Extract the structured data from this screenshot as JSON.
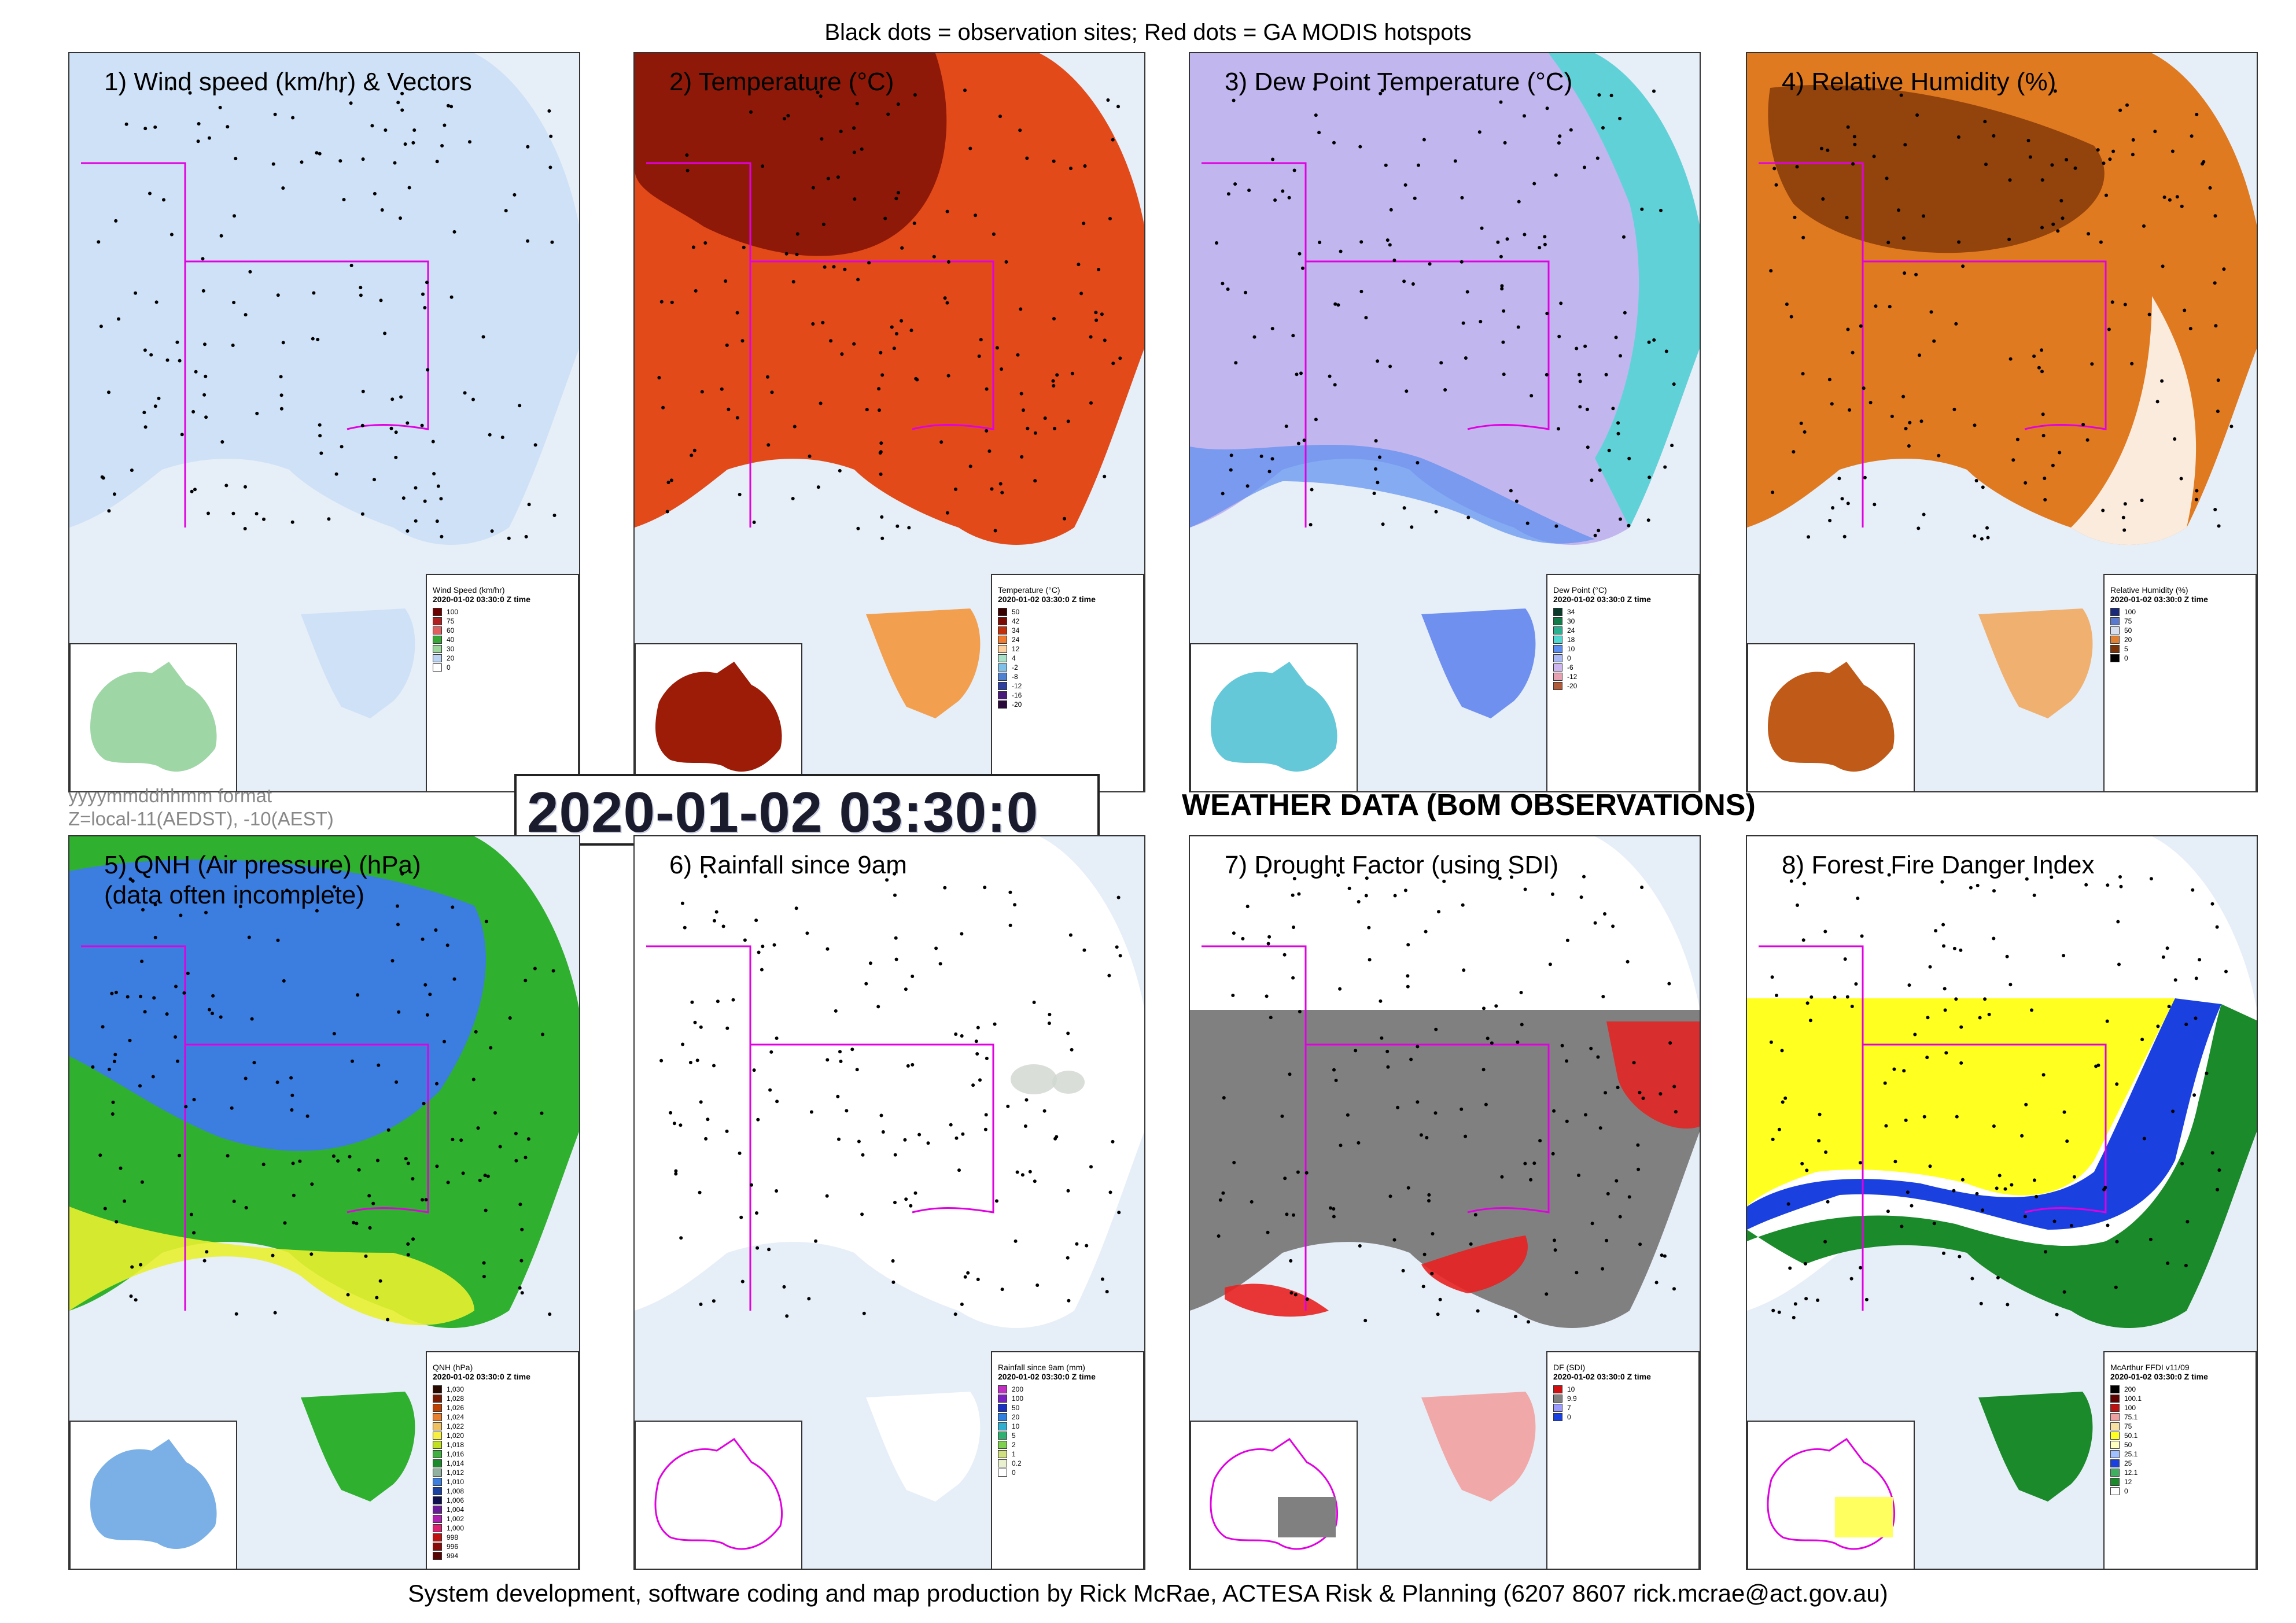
{
  "header": {
    "caption": "Black dots = observation sites; Red dots = GA MODIS hotspots"
  },
  "footer": {
    "credit": "System development, software coding and map production by Rick McRae, ACTESA Risk & Planning (6207 8607 rick.mcrae@act.gov.au)"
  },
  "format_note": {
    "line1": "yyyymmddhhmm format",
    "line2": "Z=local-11(AEDST), -10(AEST)"
  },
  "timestamp": "2020-01-02 03:30:0",
  "section_title": "WEATHER DATA (BoM OBSERVATIONS)",
  "panels": [
    {
      "title": "1) Wind speed (km/hr) & Vectors",
      "colors": {
        "ocean": "#e6eef8",
        "land_fill": "#cfe1f6",
        "accent": "#a9c9ee",
        "inset_fill": "#9fd6a6"
      },
      "legend": {
        "title": "Wind Speed (km/hr)",
        "time": "2020-01-02 03:30:0 Z time",
        "items": [
          {
            "label": "100",
            "color": "#6e0000"
          },
          {
            "label": "75",
            "color": "#b02020"
          },
          {
            "label": "60",
            "color": "#e06060"
          },
          {
            "label": "40",
            "color": "#35a835"
          },
          {
            "label": "30",
            "color": "#9ed79e"
          },
          {
            "label": "20",
            "color": "#bcd3f2"
          },
          {
            "label": "0",
            "color": "#ffffff"
          }
        ]
      }
    },
    {
      "title": "2) Temperature (°C)",
      "colors": {
        "ocean": "#e6eef8",
        "land_fill": "#e24a1a",
        "accent": "#7a0c04",
        "inset_fill": "#9c1c08"
      },
      "legend": {
        "title": "Temperature (°C)",
        "time": "2020-01-02 03:30:0 Z time",
        "items": [
          {
            "label": "50",
            "color": "#3a0000"
          },
          {
            "label": "42",
            "color": "#7a0a02"
          },
          {
            "label": "34",
            "color": "#c0300a"
          },
          {
            "label": "24",
            "color": "#f07a30"
          },
          {
            "label": "12",
            "color": "#fdd0a0"
          },
          {
            "label": "4",
            "color": "#a8e0c8"
          },
          {
            "label": "-2",
            "color": "#7ec0e8"
          },
          {
            "label": "-8",
            "color": "#5080d0"
          },
          {
            "label": "-12",
            "color": "#3040a0"
          },
          {
            "label": "-16",
            "color": "#4a1a7a"
          },
          {
            "label": "-20",
            "color": "#2a0a3a"
          }
        ]
      }
    },
    {
      "title": "3) Dew Point Temperature (°C)",
      "colors": {
        "ocean": "#e6eef8",
        "land_fill": "#c2b6ef",
        "accent": "#4fd7d2",
        "inset_fill": "#64c8d8"
      },
      "legend": {
        "title": "Dew Point (°C)",
        "time": "2020-01-02 03:30:0 Z time",
        "items": [
          {
            "label": "34",
            "color": "#0a3a2a"
          },
          {
            "label": "30",
            "color": "#137a4a"
          },
          {
            "label": "24",
            "color": "#2ab090"
          },
          {
            "label": "18",
            "color": "#4fd7d2"
          },
          {
            "label": "10",
            "color": "#5b8ef0"
          },
          {
            "label": "0",
            "color": "#a9b8f4"
          },
          {
            "label": "-6",
            "color": "#cdb6f0"
          },
          {
            "label": "-12",
            "color": "#e6a0b0"
          },
          {
            "label": "-20",
            "color": "#b05a3a"
          }
        ]
      }
    },
    {
      "title": "4) Relative Humidity (%)",
      "colors": {
        "ocean": "#e6eef8",
        "land_fill": "#e07a20",
        "accent": "#7a3206",
        "inset_fill": "#c05a18"
      },
      "legend": {
        "title": "Relative Humidity (%)",
        "time": "2020-01-02 03:30:0 Z time",
        "items": [
          {
            "label": "100",
            "color": "#1a2a7a"
          },
          {
            "label": "75",
            "color": "#5a7ad0"
          },
          {
            "label": "50",
            "color": "#d8e0f0"
          },
          {
            "label": "20",
            "color": "#e08030"
          },
          {
            "label": "5",
            "color": "#7a3206"
          },
          {
            "label": "0",
            "color": "#000000"
          }
        ]
      }
    },
    {
      "title": "5) QNH (Air pressure) (hPa)\n(data often incomplete)",
      "title_line1": "5) QNH (Air pressure) (hPa)",
      "title_line2": "(data often incomplete)",
      "colors": {
        "ocean": "#e6eef8",
        "land_fill": "#2fb02f",
        "accent": "#3b7ee0",
        "inset_fill": "#7ab0e6"
      },
      "legend": {
        "title": "QNH (hPa)",
        "time": "2020-01-02 03:30:0 Z time",
        "items": [
          {
            "label": "1,030",
            "color": "#2a0a00"
          },
          {
            "label": "1,028",
            "color": "#7a1a00"
          },
          {
            "label": "1,026",
            "color": "#c04000"
          },
          {
            "label": "1,024",
            "color": "#e88030"
          },
          {
            "label": "1,022",
            "color": "#f0c060"
          },
          {
            "label": "1,020",
            "color": "#f8f040"
          },
          {
            "label": "1,018",
            "color": "#c0e020"
          },
          {
            "label": "1,016",
            "color": "#40b040"
          },
          {
            "label": "1,014",
            "color": "#1a8a2a"
          },
          {
            "label": "1,012",
            "color": "#90b0a0"
          },
          {
            "label": "1,010",
            "color": "#3b7ee0"
          },
          {
            "label": "1,008",
            "color": "#1a40a0"
          },
          {
            "label": "1,006",
            "color": "#101050"
          },
          {
            "label": "1,004",
            "color": "#6a1a9a"
          },
          {
            "label": "1,002",
            "color": "#b020b0"
          },
          {
            "label": "1,000",
            "color": "#e02070"
          },
          {
            "label": "998",
            "color": "#c01010"
          },
          {
            "label": "996",
            "color": "#8a0a0a"
          },
          {
            "label": "994",
            "color": "#5a0505"
          }
        ]
      }
    },
    {
      "title": "6) Rainfall since 9am",
      "colors": {
        "ocean": "#e6eef8",
        "land_fill": "#ffffff",
        "accent": "#9aa89a",
        "inset_fill": "#ffffff"
      },
      "legend": {
        "title": "Rainfall since 9am (mm)",
        "time": "2020-01-02 03:30:0 Z time",
        "items": [
          {
            "label": "200",
            "color": "#c030c0"
          },
          {
            "label": "100",
            "color": "#7a20c0"
          },
          {
            "label": "50",
            "color": "#1a30c0"
          },
          {
            "label": "20",
            "color": "#3080e0"
          },
          {
            "label": "10",
            "color": "#30b0d0"
          },
          {
            "label": "5",
            "color": "#30b070"
          },
          {
            "label": "2",
            "color": "#80d050"
          },
          {
            "label": "1",
            "color": "#d0e080"
          },
          {
            "label": "0.2",
            "color": "#e8f0d0"
          },
          {
            "label": "0",
            "color": "#ffffff"
          }
        ]
      }
    },
    {
      "title": "7) Drought Factor (using SDI)",
      "colors": {
        "ocean": "#e6eef8",
        "land_fill": "#808080",
        "accent": "#e82020",
        "inset_fill": "#808080"
      },
      "legend": {
        "title": "DF (SDI)",
        "time": "2020-01-02 03:30:0 Z time",
        "items": [
          {
            "label": "10",
            "color": "#d01010"
          },
          {
            "label": "9.9",
            "color": "#808080"
          },
          {
            "label": "7",
            "color": "#9a9aff"
          },
          {
            "label": "0",
            "color": "#1a40e0"
          }
        ]
      }
    },
    {
      "title": "8) Forest Fire Danger Index",
      "colors": {
        "ocean": "#e6eef8",
        "land_fill": "#ffff20",
        "accent": "#1a40e0",
        "inset_fill": "#ffff60"
      },
      "legend": {
        "title": "McArthur FFDI v11/09",
        "time": "2020-01-02 03:30:0 Z time",
        "items": [
          {
            "label": "200",
            "color": "#000000"
          },
          {
            "label": "100.1",
            "color": "#600000"
          },
          {
            "label": "100",
            "color": "#c01010"
          },
          {
            "label": "75.1",
            "color": "#f0a0a0"
          },
          {
            "label": "75",
            "color": "#f8e0a0"
          },
          {
            "label": "50.1",
            "color": "#ffff20"
          },
          {
            "label": "50",
            "color": "#ffffc0"
          },
          {
            "label": "25.1",
            "color": "#a0c0ff"
          },
          {
            "label": "25",
            "color": "#1a40e0"
          },
          {
            "label": "12.1",
            "color": "#40b060"
          },
          {
            "label": "12",
            "color": "#1a8a2a"
          },
          {
            "label": "0",
            "color": "#ffffff"
          }
        ]
      }
    }
  ]
}
